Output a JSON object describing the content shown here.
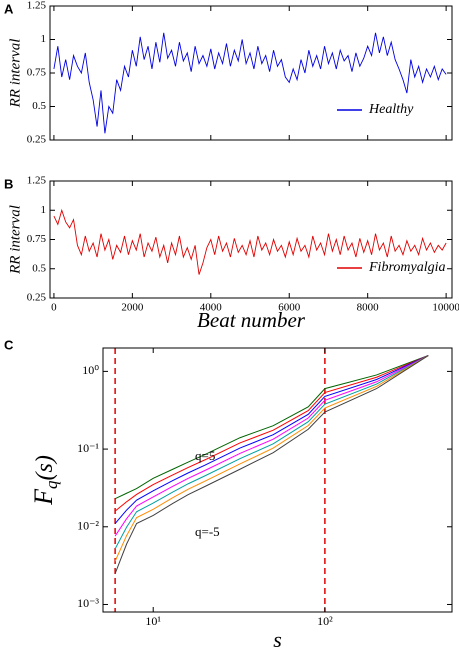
{
  "chart_data": [
    {
      "type": "line",
      "panel_label": "A",
      "ylabel": "RR interval",
      "legend": "lower right",
      "xlim": [
        -100,
        10150
      ],
      "ylim": [
        0.25,
        1.25
      ],
      "yticks": [
        0.25,
        0.5,
        0.75,
        1,
        1.25
      ],
      "x": [
        0,
        100,
        200,
        300,
        400,
        500,
        600,
        700,
        800,
        900,
        1000,
        1100,
        1200,
        1300,
        1400,
        1500,
        1600,
        1700,
        1800,
        1900,
        2000,
        2100,
        2200,
        2300,
        2400,
        2500,
        2600,
        2700,
        2800,
        2900,
        3000,
        3100,
        3200,
        3300,
        3400,
        3500,
        3600,
        3700,
        3800,
        3900,
        4000,
        4100,
        4200,
        4300,
        4400,
        4500,
        4600,
        4700,
        4800,
        4900,
        5000,
        5100,
        5200,
        5300,
        5400,
        5500,
        5600,
        5700,
        5800,
        5900,
        6000,
        6100,
        6200,
        6300,
        6400,
        6500,
        6600,
        6700,
        6800,
        6900,
        7000,
        7100,
        7200,
        7300,
        7400,
        7500,
        7600,
        7700,
        7800,
        7900,
        8000,
        8100,
        8200,
        8300,
        8400,
        8500,
        8600,
        8700,
        8800,
        8900,
        9000,
        9100,
        9200,
        9300,
        9400,
        9500,
        9600,
        9700,
        9800,
        9900,
        10000
      ],
      "series": [
        {
          "name": "Healthy",
          "color": "#0000e0",
          "values": [
            0.78,
            0.95,
            0.72,
            0.85,
            0.7,
            0.88,
            0.8,
            0.75,
            0.9,
            0.68,
            0.55,
            0.35,
            0.62,
            0.3,
            0.5,
            0.45,
            0.7,
            0.62,
            0.8,
            0.72,
            0.92,
            0.8,
            1.02,
            0.85,
            0.95,
            0.78,
            0.98,
            0.83,
            1.05,
            0.86,
            0.92,
            0.8,
            0.98,
            0.84,
            0.9,
            0.76,
            0.95,
            0.82,
            0.88,
            0.8,
            0.93,
            0.78,
            0.9,
            0.82,
            0.97,
            0.8,
            0.92,
            0.84,
            1.0,
            0.82,
            0.9,
            0.78,
            0.95,
            0.82,
            0.88,
            0.76,
            0.92,
            0.8,
            0.85,
            0.72,
            0.68,
            0.78,
            0.7,
            0.85,
            0.75,
            0.92,
            0.8,
            0.88,
            0.78,
            0.95,
            0.82,
            0.9,
            0.78,
            0.92,
            0.84,
            0.88,
            0.76,
            0.9,
            0.8,
            0.86,
            0.95,
            0.88,
            1.05,
            0.9,
            1.02,
            0.88,
            0.98,
            0.85,
            0.78,
            0.7,
            0.6,
            0.85,
            0.72,
            0.8,
            0.68,
            0.78,
            0.72,
            0.8,
            0.7,
            0.78,
            0.74
          ]
        }
      ]
    },
    {
      "type": "line",
      "panel_label": "B",
      "ylabel": "RR interval",
      "xlabel": "Beat number",
      "legend": "lower right",
      "xlim": [
        -100,
        10150
      ],
      "ylim": [
        0.25,
        1.25
      ],
      "yticks": [
        0.25,
        0.5,
        0.75,
        1,
        1.25
      ],
      "xticks": [
        0,
        2000,
        4000,
        6000,
        8000,
        10000
      ],
      "x": [
        0,
        100,
        200,
        300,
        400,
        500,
        600,
        700,
        800,
        900,
        1000,
        1100,
        1200,
        1300,
        1400,
        1500,
        1600,
        1700,
        1800,
        1900,
        2000,
        2100,
        2200,
        2300,
        2400,
        2500,
        2600,
        2700,
        2800,
        2900,
        3000,
        3100,
        3200,
        3300,
        3400,
        3500,
        3600,
        3700,
        3800,
        3900,
        4000,
        4100,
        4200,
        4300,
        4400,
        4500,
        4600,
        4700,
        4800,
        4900,
        5000,
        5100,
        5200,
        5300,
        5400,
        5500,
        5600,
        5700,
        5800,
        5900,
        6000,
        6100,
        6200,
        6300,
        6400,
        6500,
        6600,
        6700,
        6800,
        6900,
        7000,
        7100,
        7200,
        7300,
        7400,
        7500,
        7600,
        7700,
        7800,
        7900,
        8000,
        8100,
        8200,
        8300,
        8400,
        8500,
        8600,
        8700,
        8800,
        8900,
        9000,
        9100,
        9200,
        9300,
        9400,
        9500,
        9600,
        9700,
        9800,
        9900,
        10000
      ],
      "series": [
        {
          "name": "Fibromyalgia",
          "color": "#e00000",
          "values": [
            0.95,
            0.88,
            1.0,
            0.9,
            0.85,
            0.92,
            0.7,
            0.62,
            0.78,
            0.65,
            0.72,
            0.6,
            0.8,
            0.66,
            0.75,
            0.58,
            0.7,
            0.64,
            0.78,
            0.62,
            0.74,
            0.66,
            0.8,
            0.6,
            0.72,
            0.65,
            0.77,
            0.6,
            0.7,
            0.55,
            0.72,
            0.62,
            0.78,
            0.6,
            0.68,
            0.58,
            0.7,
            0.45,
            0.55,
            0.68,
            0.75,
            0.62,
            0.78,
            0.65,
            0.72,
            0.6,
            0.76,
            0.64,
            0.7,
            0.62,
            0.74,
            0.6,
            0.78,
            0.66,
            0.72,
            0.62,
            0.75,
            0.65,
            0.7,
            0.6,
            0.73,
            0.62,
            0.76,
            0.65,
            0.7,
            0.6,
            0.78,
            0.66,
            0.72,
            0.62,
            0.8,
            0.65,
            0.75,
            0.62,
            0.78,
            0.66,
            0.72,
            0.6,
            0.76,
            0.64,
            0.74,
            0.62,
            0.8,
            0.66,
            0.72,
            0.6,
            0.78,
            0.65,
            0.7,
            0.62,
            0.74,
            0.65,
            0.7,
            0.62,
            0.76,
            0.66,
            0.72,
            0.64,
            0.7,
            0.66,
            0.72
          ]
        }
      ]
    },
    {
      "type": "line",
      "panel_label": "C",
      "log_x": true,
      "log_y": true,
      "ylabel": {
        "main": "F",
        "sub": "q",
        "tail": "(s)"
      },
      "xlabel": "s",
      "xlim": [
        5.1,
        550
      ],
      "ylim": [
        0.0008,
        2
      ],
      "xticks": [
        {
          "value": 10,
          "label": "10¹"
        },
        {
          "value": 100,
          "label": "10²"
        }
      ],
      "yticks": [
        {
          "value": 0.001,
          "label": "10⁻³"
        },
        {
          "value": 0.01,
          "label": "10⁻²"
        },
        {
          "value": 0.1,
          "label": "10⁻¹"
        },
        {
          "value": 1,
          "label": "10⁰"
        }
      ],
      "vlines": [
        6,
        100
      ],
      "vline_color": "#e00000",
      "annotations": [
        "q=5",
        "q=-5"
      ],
      "x": [
        6,
        7,
        8,
        10,
        13,
        16,
        20,
        32,
        50,
        80,
        100,
        200,
        400
      ],
      "series": [
        {
          "color": "#006400",
          "values": [
            0.023,
            0.027,
            0.031,
            0.042,
            0.055,
            0.068,
            0.085,
            0.14,
            0.2,
            0.35,
            0.6,
            0.9,
            1.6
          ]
        },
        {
          "color": "#ff0000",
          "values": [
            0.0159,
            0.021,
            0.0261,
            0.035,
            0.0465,
            0.058,
            0.0726,
            0.12,
            0.175,
            0.313,
            0.534,
            0.841,
            1.6
          ]
        },
        {
          "color": "#0000ff",
          "values": [
            0.011,
            0.0164,
            0.022,
            0.029,
            0.0393,
            0.0494,
            0.062,
            0.103,
            0.153,
            0.28,
            0.476,
            0.786,
            1.6
          ]
        },
        {
          "color": "#ff00ff",
          "values": [
            0.0076,
            0.0127,
            0.0185,
            0.0242,
            0.0332,
            0.0421,
            0.053,
            0.0879,
            0.134,
            0.251,
            0.424,
            0.735,
            1.6
          ]
        },
        {
          "color": "#00a0a0",
          "values": [
            0.0052,
            0.0099,
            0.0156,
            0.0202,
            0.028,
            0.0358,
            0.0452,
            0.0752,
            0.117,
            0.225,
            0.378,
            0.687,
            1.6
          ]
        },
        {
          "color": "#ff8c00",
          "values": [
            0.0036,
            0.0077,
            0.0131,
            0.0168,
            0.0237,
            0.0305,
            0.0386,
            0.0643,
            0.103,
            0.201,
            0.337,
            0.642,
            1.6
          ]
        },
        {
          "color": "#404040",
          "values": [
            0.0025,
            0.006,
            0.011,
            0.014,
            0.02,
            0.026,
            0.033,
            0.055,
            0.09,
            0.18,
            0.3,
            0.6,
            1.6
          ]
        }
      ]
    }
  ]
}
